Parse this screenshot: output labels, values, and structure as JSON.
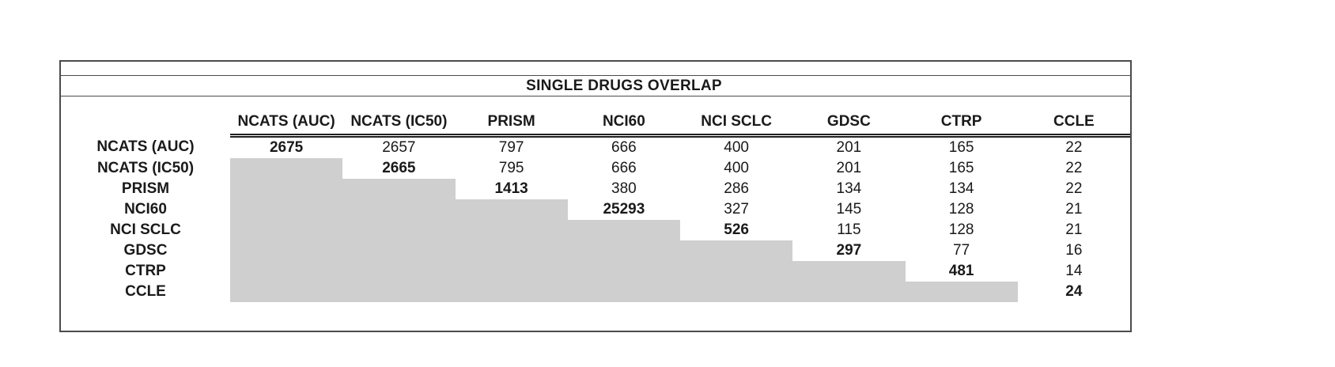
{
  "chart_data": {
    "type": "table",
    "title": "SINGLE DRUGS OVERLAP",
    "columns": [
      "NCATS (AUC)",
      "NCATS (IC50)",
      "PRISM",
      "NCI60",
      "NCI SCLC",
      "GDSC",
      "CTRP",
      "CCLE"
    ],
    "rows": [
      {
        "label": "NCATS (AUC)",
        "values": [
          2675,
          2657,
          797,
          666,
          400,
          201,
          165,
          22
        ]
      },
      {
        "label": "NCATS (IC50)",
        "values": [
          null,
          2665,
          795,
          666,
          400,
          201,
          165,
          22
        ]
      },
      {
        "label": "PRISM",
        "values": [
          null,
          null,
          1413,
          380,
          286,
          134,
          134,
          22
        ]
      },
      {
        "label": "NCI60",
        "values": [
          null,
          null,
          null,
          25293,
          327,
          145,
          128,
          21
        ]
      },
      {
        "label": "NCI SCLC",
        "values": [
          null,
          null,
          null,
          null,
          526,
          115,
          128,
          21
        ]
      },
      {
        "label": "GDSC",
        "values": [
          null,
          null,
          null,
          null,
          null,
          297,
          77,
          16
        ]
      },
      {
        "label": "CTRP",
        "values": [
          null,
          null,
          null,
          null,
          null,
          null,
          481,
          14
        ]
      },
      {
        "label": "CCLE",
        "values": [
          null,
          null,
          null,
          null,
          null,
          null,
          null,
          24
        ]
      }
    ],
    "layout_hints": {
      "diagonal_values_bold": true,
      "cells_below_diagonal_shaded": true,
      "header_underline": "double",
      "grid": "off"
    }
  },
  "colors": {
    "shaded_cell": "#d0cfd0",
    "border": "#4b4b4b",
    "text": "#1a1a1a",
    "background": "#ffffff"
  }
}
